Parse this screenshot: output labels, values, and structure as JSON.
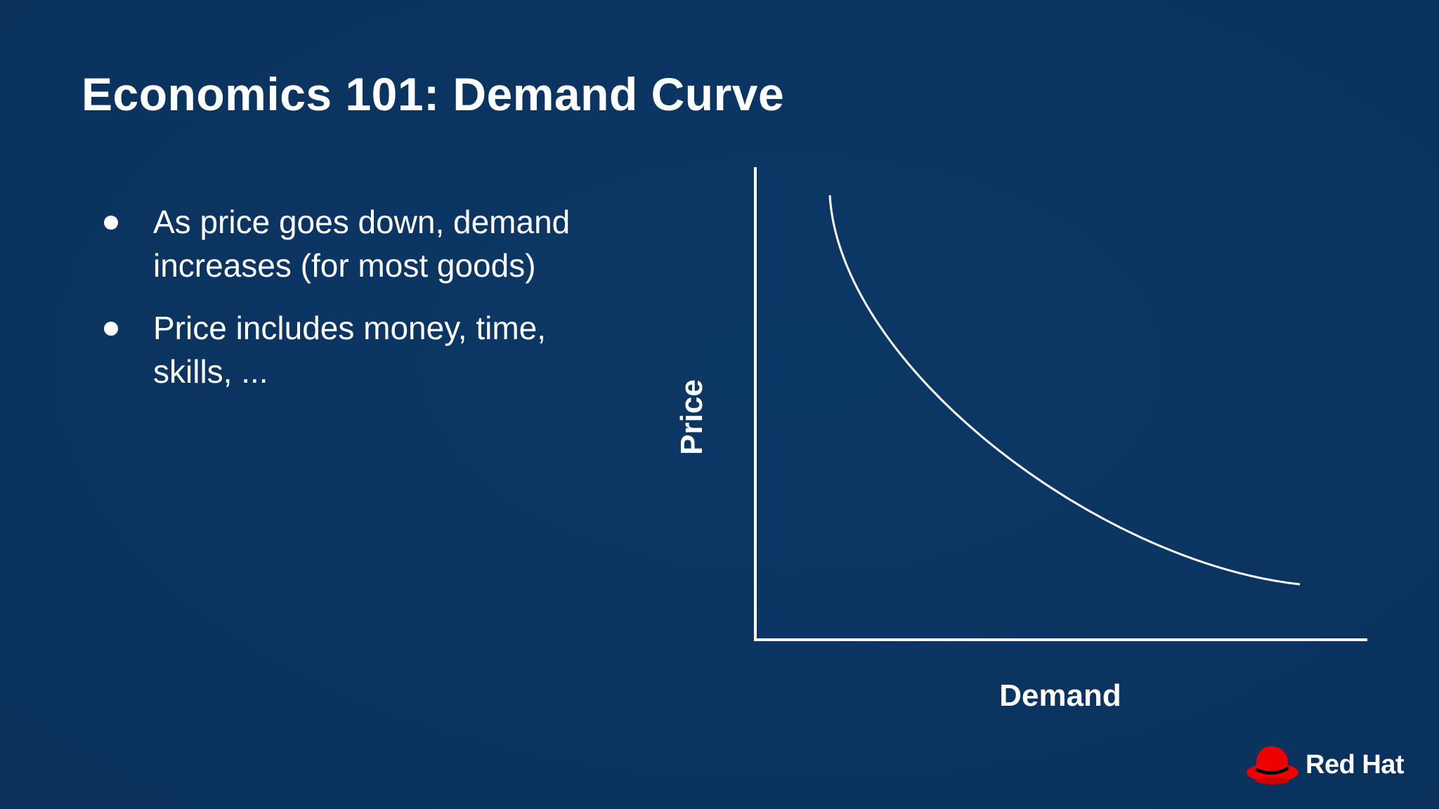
{
  "slide": {
    "title": "Economics 101: Demand Curve",
    "bullets": [
      {
        "line1": "As price goes down, demand",
        "line2": "increases (for most goods)"
      },
      {
        "line1": "Price includes money, time,",
        "line2": "skills, ..."
      }
    ]
  },
  "chart": {
    "y_axis_label": "Price",
    "x_axis_label": "Demand",
    "curve": "downward-sloping convex demand curve"
  },
  "branding": {
    "logo_text": "Red Hat",
    "logo_icon": "red-fedora-icon",
    "logo_color": "#ee0000"
  },
  "colors": {
    "background": "#0b3461",
    "foreground": "#ffffff"
  }
}
